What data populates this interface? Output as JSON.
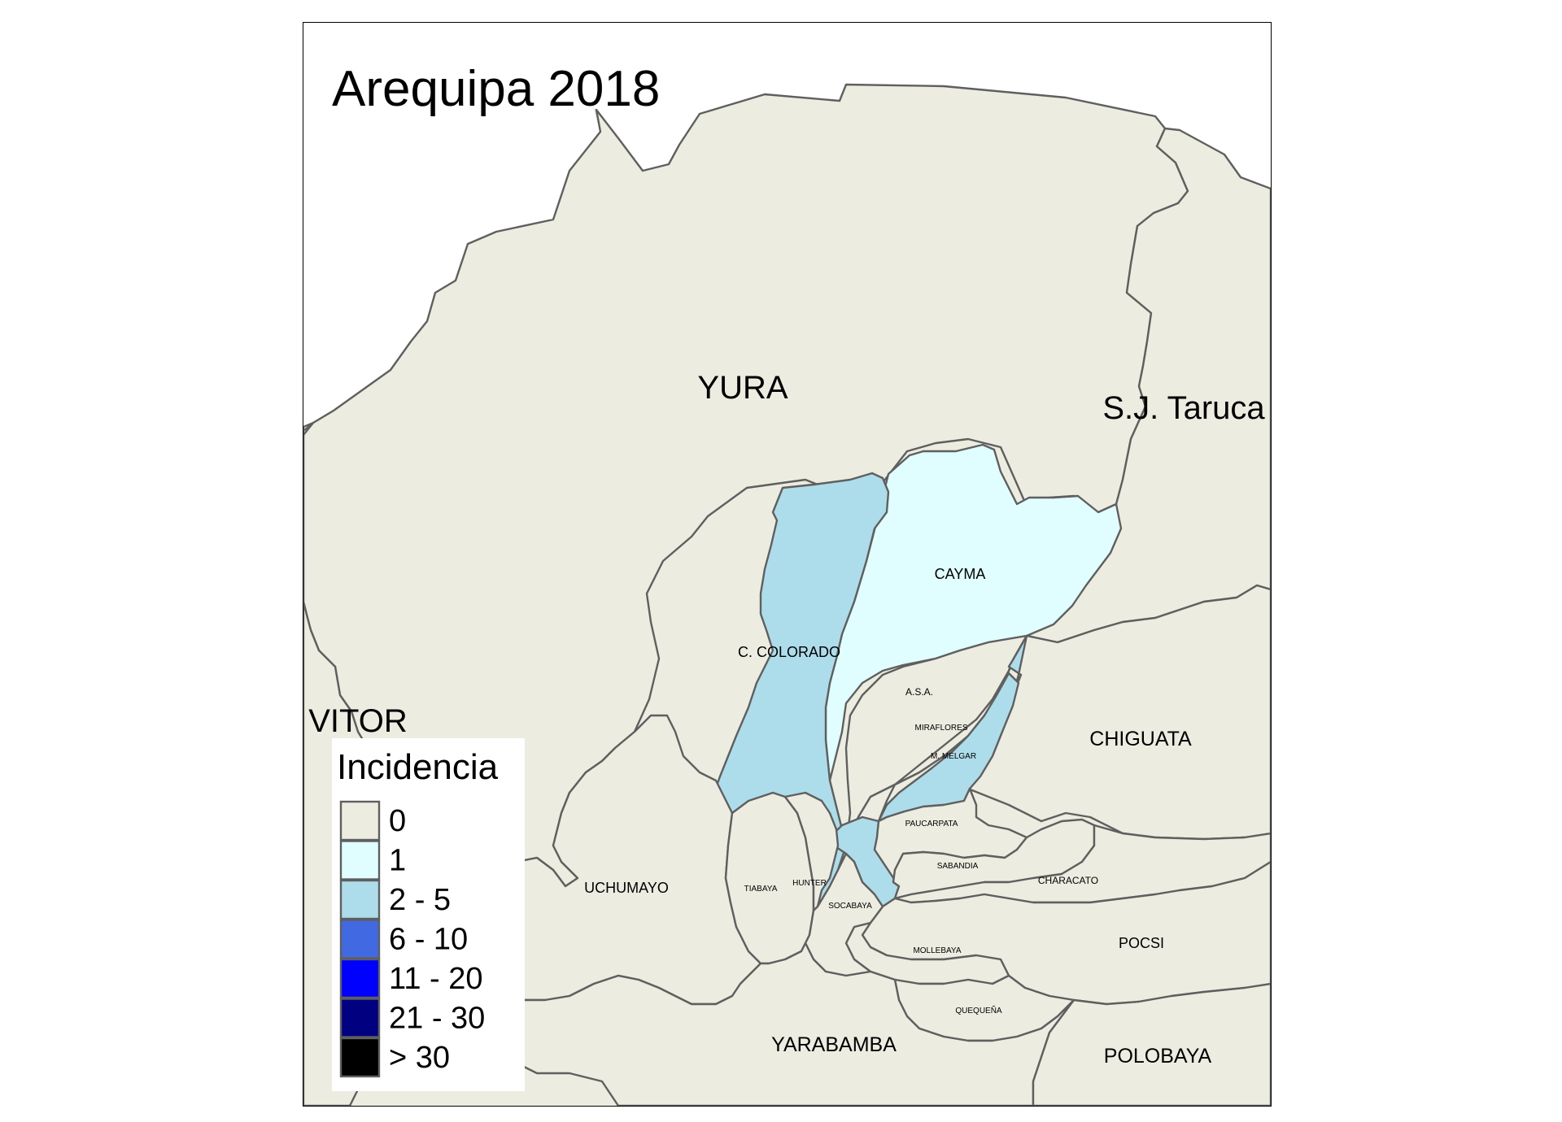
{
  "map": {
    "title": "Arequipa 2018",
    "legend_title": "Incidencia",
    "legend": [
      {
        "label": "0",
        "color": "#edece1"
      },
      {
        "label": "1",
        "color": "#e0feff"
      },
      {
        "label": "2 - 5",
        "color": "#addceb"
      },
      {
        "label": "6 - 10",
        "color": "#4169e1"
      },
      {
        "label": "11 - 20",
        "color": "#0000ff"
      },
      {
        "label": "21 - 30",
        "color": "#000080"
      },
      {
        "label": "> 30",
        "color": "#000000"
      }
    ],
    "districts": {
      "yura": {
        "name": "YURA",
        "class": "0"
      },
      "sj_taruca": {
        "name": "S.J. Taruca",
        "class": "0"
      },
      "vitor": {
        "name": "VITOR",
        "class": "0"
      },
      "cayma": {
        "name": "CAYMA",
        "class": "1"
      },
      "c_colorado": {
        "name": "C. COLORADO",
        "class": "2 - 5"
      },
      "asa": {
        "name": "A.S.A.",
        "class": "0"
      },
      "miraflores": {
        "name": "MIRAFLORES",
        "class": "0"
      },
      "m_melgar": {
        "name": "M. MELGAR",
        "class": "2 - 5"
      },
      "chiguata": {
        "name": "CHIGUATA",
        "class": "0"
      },
      "paucarpata": {
        "name": "PAUCARPATA",
        "class": "0"
      },
      "sabandia": {
        "name": "SABANDIA",
        "class": "0"
      },
      "characato": {
        "name": "CHARACATO",
        "class": "0"
      },
      "uchumayo": {
        "name": "UCHUMAYO",
        "class": "0"
      },
      "tiabaya": {
        "name": "TIABAYA",
        "class": "0"
      },
      "hunter": {
        "name": "HUNTER",
        "class": "0"
      },
      "socabaya": {
        "name": "SOCABAYA",
        "class": "0"
      },
      "mollebaya": {
        "name": "MOLLEBAYA",
        "class": "0"
      },
      "pocsi": {
        "name": "POCSI",
        "class": "0"
      },
      "quequena": {
        "name": "QUEQUEÑA",
        "class": "0"
      },
      "yarabamba": {
        "name": "YARABAMBA",
        "class": "0"
      },
      "polobaya": {
        "name": "POLOBAYA",
        "class": "0"
      },
      "jlbr": {
        "name": "",
        "class": "2 - 5"
      }
    }
  }
}
